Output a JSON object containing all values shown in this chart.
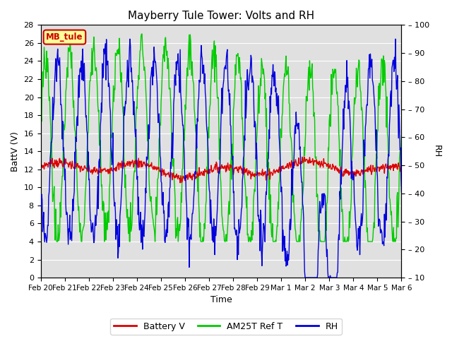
{
  "title": "Mayberry Tule Tower: Volts and RH",
  "xlabel": "Time",
  "ylabel_left": "BattV (V)",
  "ylabel_right": "RH",
  "ylim_left": [
    0,
    28
  ],
  "ylim_right": [
    10,
    100
  ],
  "yticks_left": [
    0,
    2,
    4,
    6,
    8,
    10,
    12,
    14,
    16,
    18,
    20,
    22,
    24,
    26,
    28
  ],
  "yticks_right": [
    10,
    20,
    30,
    40,
    50,
    60,
    70,
    80,
    90,
    100
  ],
  "xtick_labels": [
    "Feb 20",
    "Feb 21",
    "Feb 22",
    "Feb 23",
    "Feb 24",
    "Feb 25",
    "Feb 26",
    "Feb 27",
    "Feb 28",
    "Feb 29",
    "Mar 1",
    "Mar 2",
    "Mar 3",
    "Mar 4",
    "Mar 5",
    "Mar 6"
  ],
  "bg_color": "#e0e0e0",
  "grid_color": "#ffffff",
  "battery_color": "#dd0000",
  "am25t_color": "#00cc00",
  "rh_color": "#0000dd",
  "legend_labels": [
    "Battery V",
    "AM25T Ref T",
    "RH"
  ],
  "watermark_text": "MB_tule",
  "watermark_color": "#cc0000",
  "watermark_bg": "#ffff99"
}
